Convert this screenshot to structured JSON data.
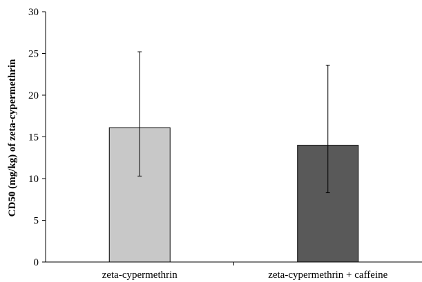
{
  "chart_data": {
    "type": "bar",
    "title": "",
    "xlabel": "",
    "ylabel": "CD50 (mg/kg) of zeta-cypermethrin",
    "ylim": [
      0,
      30
    ],
    "yticks": [
      "0",
      "5",
      "10",
      "15",
      "20",
      "25",
      "30"
    ],
    "categories": [
      "zeta-cypermethrin",
      "zeta-cypermethrin + caffeine"
    ],
    "values": [
      16.1,
      14.0
    ],
    "error_low": [
      10.3,
      8.3
    ],
    "error_high": [
      25.2,
      23.6
    ],
    "bar_colors": [
      "#c8c8c8",
      "#595959"
    ],
    "grid": false,
    "legend": "none"
  }
}
